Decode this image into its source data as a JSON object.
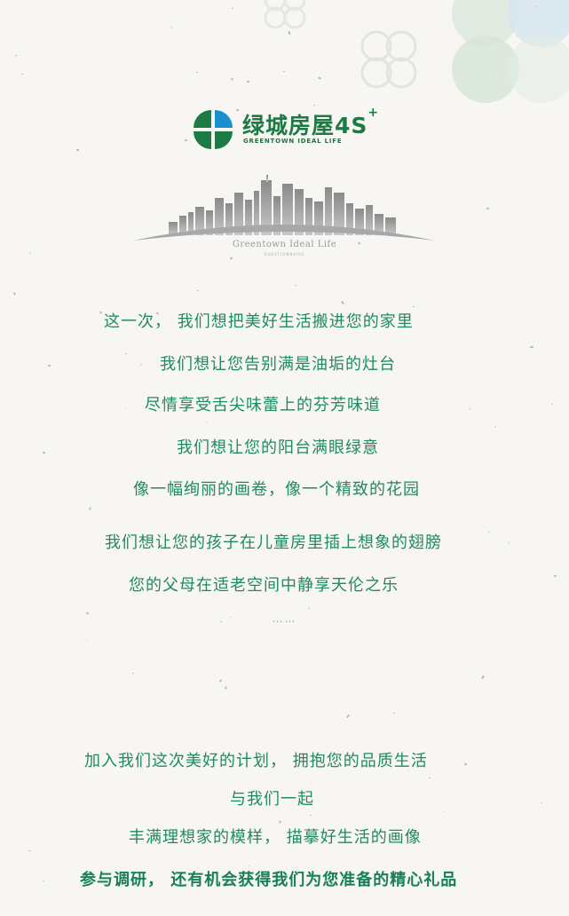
{
  "logo": {
    "name_cn": "绿城房屋4S",
    "superscript": "+",
    "name_en": "GREENTOWN IDEAL LIFE"
  },
  "skyline": {
    "caption": "Greentown Ideal Life",
    "subcaption": "QUESTIONNAIRE"
  },
  "poem": {
    "lines": [
      "这一次， 我们想把美好生活搬进您的家里",
      "我们想让您告别满是油垢的灶台",
      "尽情享受舌尖味蕾上的芬芳味道",
      "我们想让您的阳台满眼绿意",
      "像一幅绚丽的画卷，像一个精致的花园",
      "我们想让您的孩子在儿童房里插上想象的翅膀",
      "您的父母在适老空间中静享天伦之乐"
    ],
    "ellipsis": "……"
  },
  "invite": {
    "lines": [
      "加入我们这次美好的计划， 拥抱您的品质生活",
      "与我们一起",
      "丰满理想家的模样， 描摹好生活的画像"
    ],
    "highlight": "参与调研， 还有机会获得我们为您准备的精心礼品"
  },
  "colors": {
    "brand_green": "#1e7a45",
    "brand_blue": "#1a8fd0",
    "text_green": "#1f8a63",
    "background": "#f7f6f2"
  }
}
